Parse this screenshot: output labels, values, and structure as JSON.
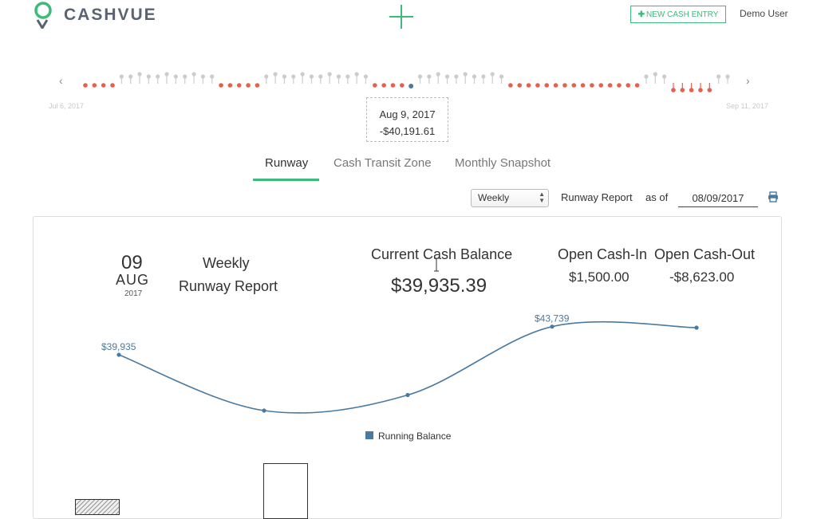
{
  "header": {
    "logo_text": "CASHVUE",
    "new_entry_label": "NEW CASH ENTRY",
    "user_label": "Demo User"
  },
  "timeline": {
    "start_label": "Jul 6, 2017",
    "end_label": "Sep 11, 2017",
    "tooltip_date": "Aug 9, 2017",
    "tooltip_amount": "-$40,191.61",
    "colors": {
      "negative": "#e8604c",
      "neutral": "#cccccc",
      "selected": "#4a7aa0"
    }
  },
  "tabs": [
    {
      "label": "Runway",
      "active": true
    },
    {
      "label": "Cash Transit Zone",
      "active": false
    },
    {
      "label": "Monthly Snapshot",
      "active": false
    }
  ],
  "controls": {
    "period": "Weekly",
    "report_label": "Runway Report",
    "as_of_label": "as of",
    "as_of_date": "08/09/2017"
  },
  "summary": {
    "day": "09",
    "month": "AUG",
    "year": "2017",
    "report_title_line1": "Weekly",
    "report_title_line2": "Runway Report",
    "current_cash_balance_label": "Current Cash Balance",
    "current_cash_balance": "$39,935.39",
    "open_cash_in_label": "Open Cash-In",
    "open_cash_in": "$1,500.00",
    "open_cash_out_label": "Open Cash-Out",
    "open_cash_out": "-$8,623.00"
  },
  "chart_data": {
    "type": "line",
    "series": [
      {
        "name": "Running Balance",
        "values": [
          39935,
          32400,
          34500,
          43739,
          43600
        ]
      }
    ],
    "point_labels": [
      "$39,935",
      "",
      "",
      "$43,739",
      ""
    ],
    "ylim": [
      31000,
      45000
    ],
    "color": "#4a7aa0",
    "legend": "bottom-center"
  }
}
